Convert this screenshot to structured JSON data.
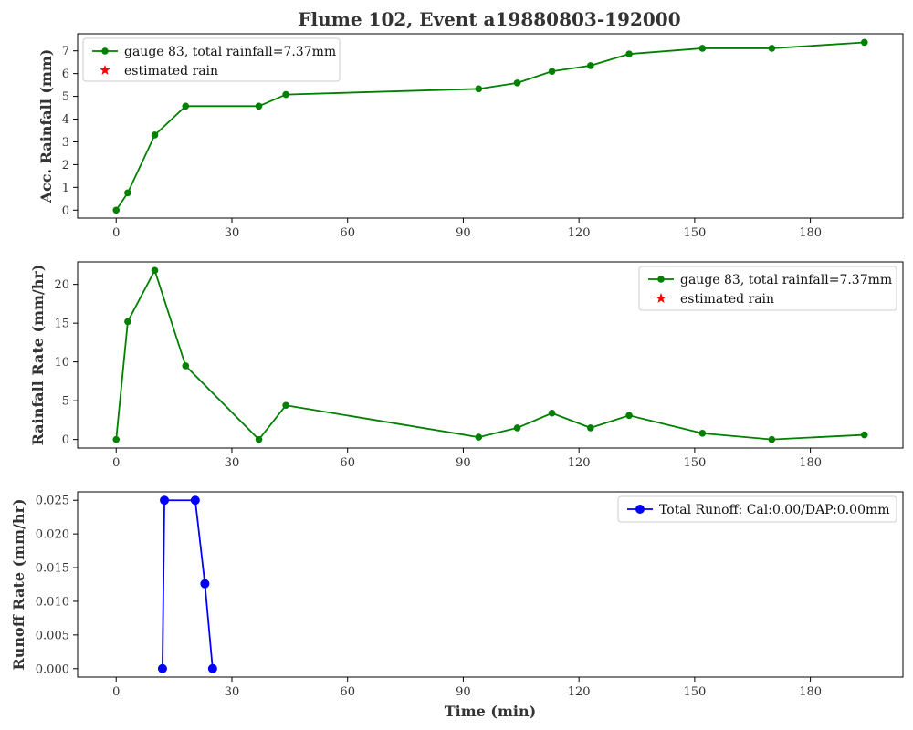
{
  "title": "Flume 102, Event a19880803-192000",
  "chart_data": [
    {
      "type": "line",
      "ylabel": "Acc. Rainfall (mm)",
      "xlabel": "",
      "xlim": [
        -10,
        204
      ],
      "ylim": [
        -0.35,
        7.75
      ],
      "xticks": [
        0,
        30,
        60,
        90,
        120,
        150,
        180
      ],
      "yticks": [
        0,
        1,
        2,
        3,
        4,
        5,
        6,
        7
      ],
      "legend_position": "upper-left",
      "series": [
        {
          "name": "gauge 83, total rainfall=7.37mm",
          "color": "#008000",
          "marker": "circle",
          "x": [
            0,
            3,
            10,
            18,
            37,
            44,
            94,
            104,
            113,
            123,
            133,
            152,
            170,
            194
          ],
          "y": [
            0,
            0.76,
            3.3,
            4.57,
            4.57,
            5.08,
            5.33,
            5.59,
            6.1,
            6.35,
            6.86,
            7.11,
            7.11,
            7.37
          ]
        },
        {
          "name": "estimated rain",
          "color": "#ff0000",
          "marker": "star",
          "x": [],
          "y": []
        }
      ]
    },
    {
      "type": "line",
      "ylabel": "Rainfall Rate (mm/hr)",
      "xlabel": "",
      "xlim": [
        -10,
        204
      ],
      "ylim": [
        -1.1,
        22.9
      ],
      "xticks": [
        0,
        30,
        60,
        90,
        120,
        150,
        180
      ],
      "yticks": [
        0,
        5,
        10,
        15,
        20
      ],
      "legend_position": "upper-right",
      "series": [
        {
          "name": "gauge 83, total rainfall=7.37mm",
          "color": "#008000",
          "marker": "circle",
          "x": [
            0,
            3,
            10,
            18,
            37,
            44,
            94,
            104,
            113,
            123,
            133,
            152,
            170,
            194
          ],
          "y": [
            0,
            15.2,
            21.8,
            9.5,
            0,
            4.4,
            0.3,
            1.5,
            3.4,
            1.5,
            3.1,
            0.8,
            0,
            0.6
          ]
        },
        {
          "name": "estimated rain",
          "color": "#ff0000",
          "marker": "star",
          "x": [],
          "y": []
        }
      ]
    },
    {
      "type": "line",
      "ylabel": "Runoff Rate (mm/hr)",
      "xlabel": "Time (min)",
      "xlim": [
        -10,
        204
      ],
      "ylim": [
        -0.00125,
        0.02625
      ],
      "xticks": [
        0,
        30,
        60,
        90,
        120,
        150,
        180
      ],
      "yticks": [
        0.0,
        0.005,
        0.01,
        0.015,
        0.02,
        0.025
      ],
      "ytick_labels": [
        "0.000",
        "0.005",
        "0.010",
        "0.015",
        "0.020",
        "0.025"
      ],
      "legend_position": "upper-right",
      "series": [
        {
          "name": "Total Runoff: Cal:0.00/DAP:0.00mm",
          "color": "#0000ff",
          "marker": "circle-large",
          "x": [
            12,
            12.5,
            20.5,
            23,
            25
          ],
          "y": [
            0,
            0.025,
            0.025,
            0.0126,
            0
          ]
        }
      ]
    }
  ]
}
